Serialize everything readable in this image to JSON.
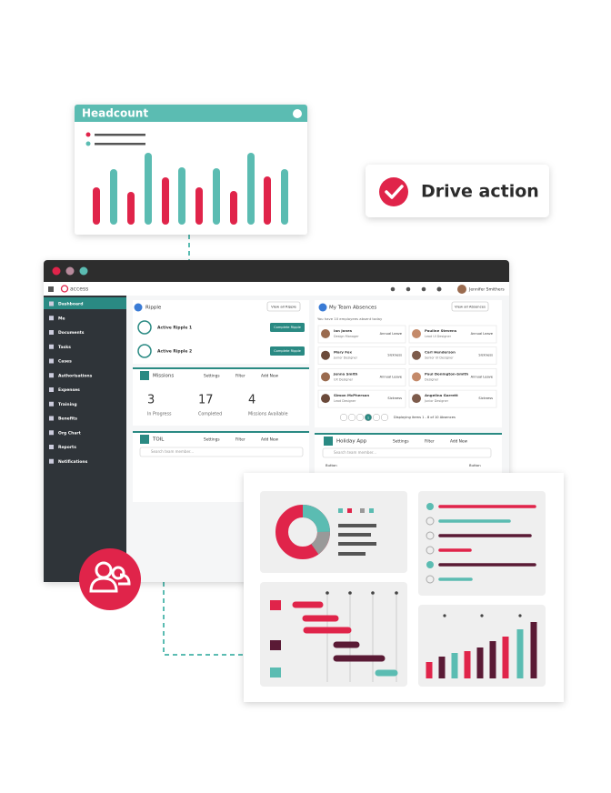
{
  "headcount_card": {
    "title": "Headcount"
  },
  "cta": {
    "label": "Drive action"
  },
  "app": {
    "brand": "access",
    "user": "Jennifer Smithers",
    "sidebar": [
      "Dashboard",
      "Me",
      "Documents",
      "Tasks",
      "Cases",
      "Authorisations",
      "Expenses",
      "Training",
      "Benefits",
      "Org Chart",
      "Reports",
      "Notifications"
    ],
    "ripple": {
      "title": "Ripple",
      "view_all": "View all Ripple",
      "items": [
        {
          "name": "Active Ripple 1",
          "button": "Complete Ripple"
        },
        {
          "name": "Active Ripple 2",
          "button": "Complete Ripple"
        }
      ]
    },
    "missions": {
      "title": "Missions",
      "actions": [
        "Settings",
        "Filter",
        "Add New"
      ],
      "stats": [
        {
          "value": 3,
          "label": "In Progress"
        },
        {
          "value": 17,
          "label": "Completed"
        },
        {
          "value": 4,
          "label": "Missions Available"
        }
      ]
    },
    "toil": {
      "title": "TOIL",
      "actions": [
        "Settings",
        "Filter",
        "Add New"
      ],
      "search": "Search team member..."
    },
    "absences": {
      "title": "My Team Absences",
      "view_all": "View all Absences",
      "summary": "You have 10 employees absent today",
      "people": [
        {
          "name": "Ian Jones",
          "role": "Design Manager",
          "type": "Annual Leave"
        },
        {
          "name": "Pauline Stevens",
          "role": "Lead UI Designer",
          "type": "Annual Leave"
        },
        {
          "name": "Mary Fox",
          "role": "Junior Designer",
          "type": "Sickness"
        },
        {
          "name": "Carl Henderson",
          "role": "Senior UI Designer",
          "type": "Sickness"
        },
        {
          "name": "Jenna Smith",
          "role": "UX Designer",
          "type": "Annual Leave"
        },
        {
          "name": "Paul Donington-Smith",
          "role": "Designer",
          "type": "Annual Leave"
        },
        {
          "name": "Simon McPherson",
          "role": "Lead Designer",
          "type": "Sickness"
        },
        {
          "name": "Angelina Garrett",
          "role": "Junior Designer",
          "type": "Sickness"
        }
      ],
      "pagination": {
        "current": 1,
        "status": "Displaying items 1 - 8 of 10 Absences"
      }
    },
    "holiday": {
      "title": "Holiday App",
      "actions": [
        "Settings",
        "Filter",
        "Add New"
      ],
      "search": "Search team member...",
      "buttons": [
        "Button",
        "Button"
      ]
    }
  }
}
